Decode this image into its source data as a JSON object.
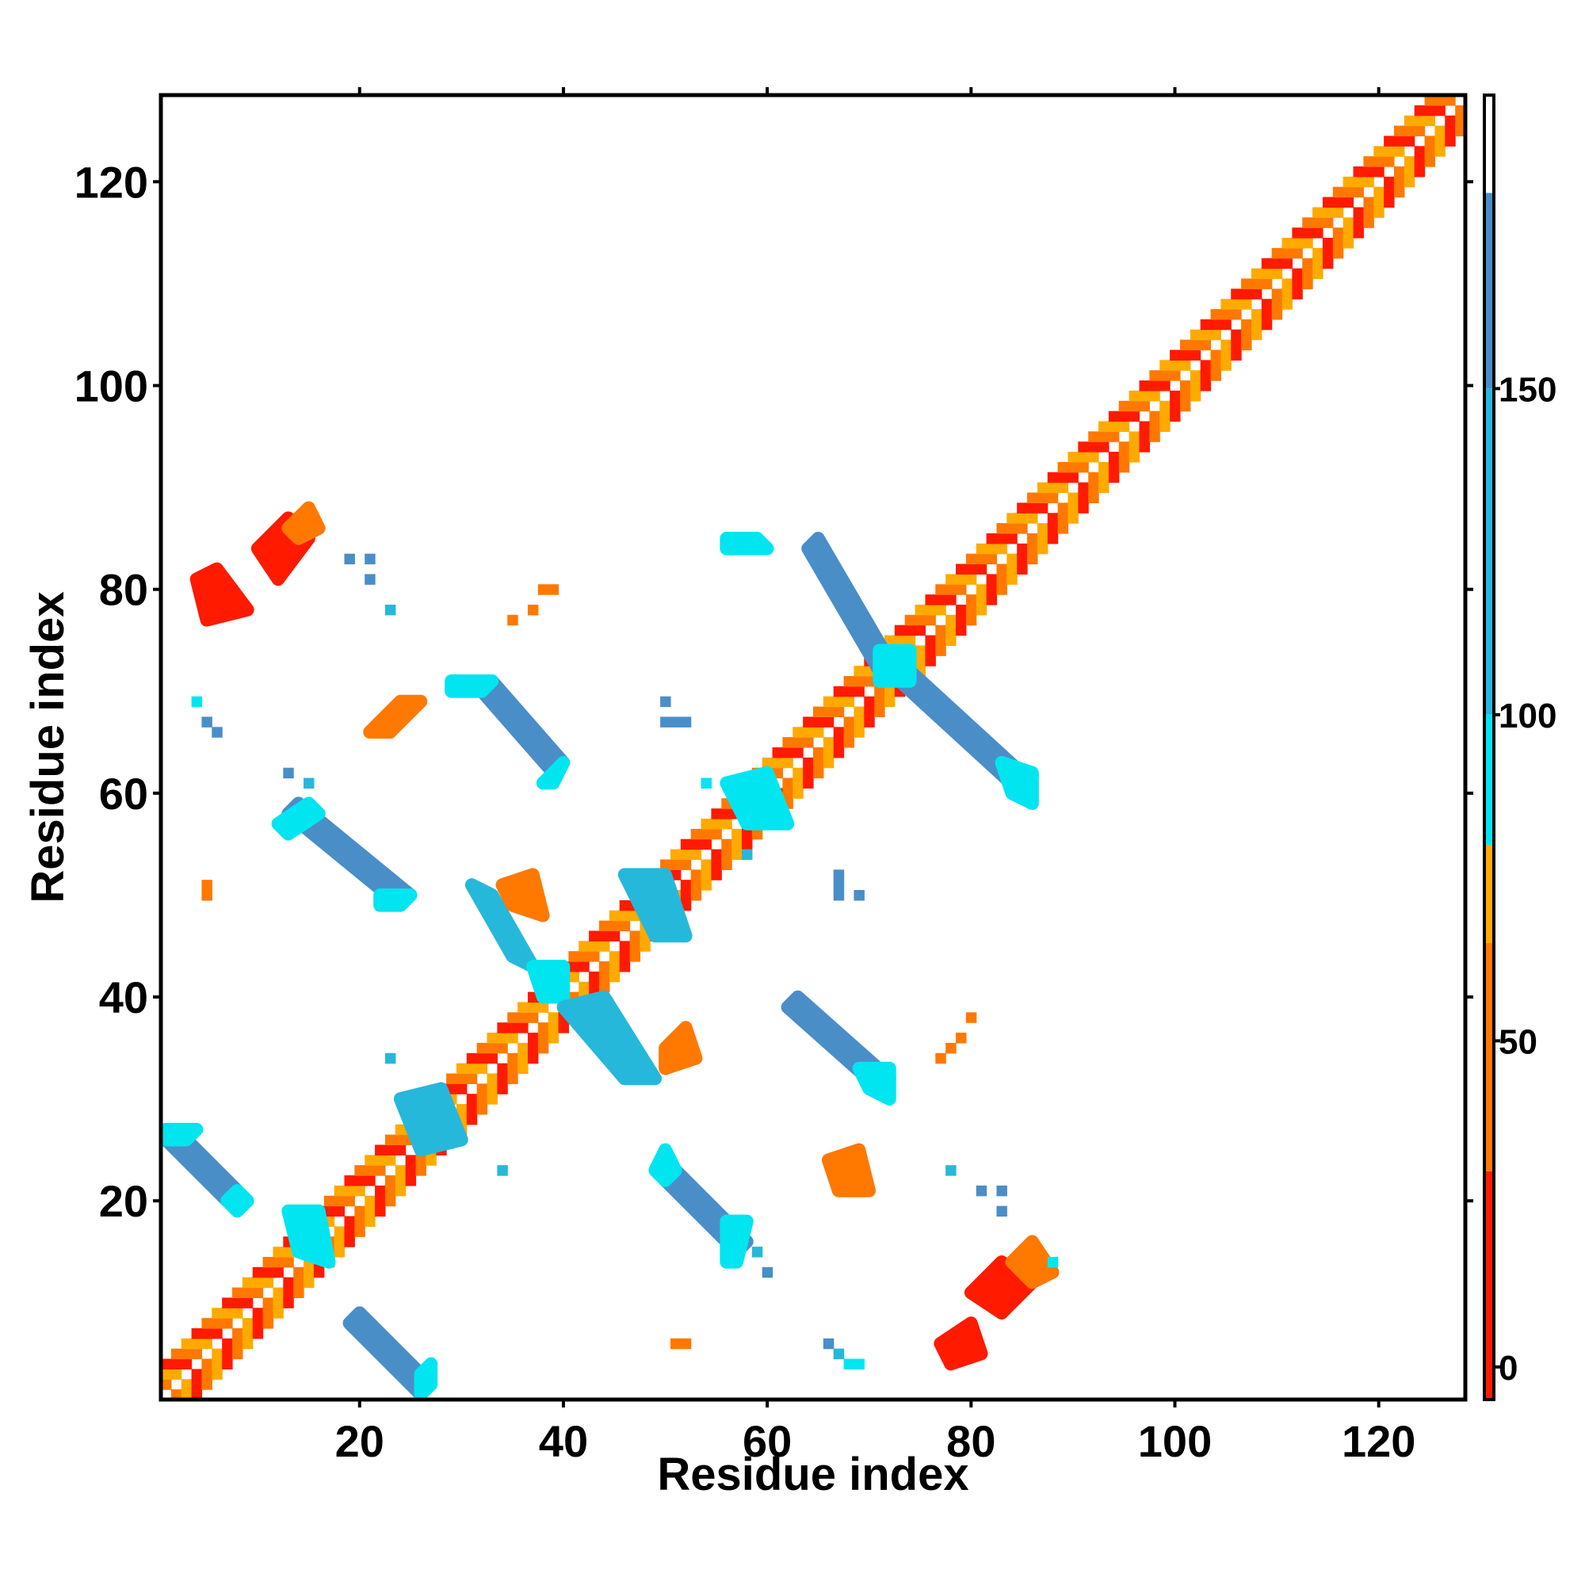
{
  "chart_data": {
    "type": "heatmap",
    "title": "",
    "xlabel": "Residue index",
    "ylabel": "Residue index",
    "xlim": [
      0.5,
      128.5
    ],
    "ylim": [
      0.5,
      128.5
    ],
    "xticks": [
      20,
      40,
      60,
      80,
      100,
      120
    ],
    "yticks": [
      20,
      40,
      60,
      80,
      100,
      120
    ],
    "grid": false,
    "colorbar": {
      "range": [
        -5,
        195
      ],
      "ticks": [
        0,
        50,
        100,
        150
      ],
      "bands": [
        {
          "from": -5,
          "to": 30,
          "color": "#ff1a00"
        },
        {
          "from": 30,
          "to": 65,
          "color": "#ff7800"
        },
        {
          "from": 65,
          "to": 80,
          "color": "#ffaa00"
        },
        {
          "from": 80,
          "to": 100,
          "color": "#00e5f0"
        },
        {
          "from": 100,
          "to": 150,
          "color": "#26b8da"
        },
        {
          "from": 150,
          "to": 180,
          "color": "#4a8ec8"
        },
        {
          "from": 180,
          "to": 195,
          "color": "#ffffff"
        }
      ]
    },
    "colors": {
      "red": "#ff1a00",
      "orange": "#ff7800",
      "amber": "#ffaa00",
      "cyan": "#00e5f0",
      "sky": "#26b8da",
      "steel": "#4a8ec8"
    },
    "value_by_color": {
      "red": 5,
      "orange": 45,
      "amber": 72,
      "cyan": 90,
      "sky": 125,
      "steel": 165
    },
    "diagonal": {
      "from": 1,
      "to": 128,
      "pattern": [
        "red",
        "orange",
        "amber"
      ],
      "offsets": [
        1,
        2,
        3
      ]
    },
    "regions": [
      {
        "color": "steel",
        "poly": [
          [
            1,
            26
          ],
          [
            2,
            27
          ],
          [
            8,
            21
          ],
          [
            7,
            20
          ]
        ]
      },
      {
        "color": "cyan",
        "poly": [
          [
            1,
            26
          ],
          [
            1,
            27
          ],
          [
            4,
            27
          ],
          [
            3,
            26
          ]
        ]
      },
      {
        "color": "cyan",
        "poly": [
          [
            7,
            20
          ],
          [
            8,
            21
          ],
          [
            9,
            20
          ],
          [
            8,
            19
          ]
        ]
      },
      {
        "color": "steel",
        "poly": [
          [
            19,
            8
          ],
          [
            20,
            9
          ],
          [
            27,
            2
          ],
          [
            26,
            1
          ]
        ]
      },
      {
        "color": "cyan",
        "poly": [
          [
            26,
            1
          ],
          [
            27,
            2
          ],
          [
            27,
            4
          ],
          [
            26,
            3
          ]
        ]
      },
      {
        "color": "steel",
        "poly": [
          [
            13,
            58
          ],
          [
            14,
            59
          ],
          [
            25,
            50
          ],
          [
            24,
            49
          ]
        ]
      },
      {
        "color": "cyan",
        "poly": [
          [
            12,
            57
          ],
          [
            15,
            59
          ],
          [
            16,
            58
          ],
          [
            13,
            56
          ]
        ]
      },
      {
        "color": "cyan",
        "poly": [
          [
            22,
            50
          ],
          [
            25,
            50
          ],
          [
            24,
            49
          ],
          [
            22,
            49
          ]
        ]
      },
      {
        "color": "steel",
        "poly": [
          [
            32,
            70
          ],
          [
            33,
            71
          ],
          [
            40,
            63
          ],
          [
            39,
            62
          ]
        ]
      },
      {
        "color": "cyan",
        "poly": [
          [
            29,
            71
          ],
          [
            33,
            71
          ],
          [
            32,
            70
          ],
          [
            29,
            70
          ]
        ]
      },
      {
        "color": "cyan",
        "poly": [
          [
            39,
            62
          ],
          [
            40,
            63
          ],
          [
            39,
            61
          ],
          [
            38,
            61
          ]
        ]
      },
      {
        "color": "steel",
        "poly": [
          [
            50,
            22
          ],
          [
            51,
            23
          ],
          [
            58,
            16
          ],
          [
            57,
            15
          ]
        ]
      },
      {
        "color": "cyan",
        "poly": [
          [
            49,
            23
          ],
          [
            50,
            25
          ],
          [
            51,
            23
          ],
          [
            50,
            22
          ]
        ]
      },
      {
        "color": "cyan",
        "poly": [
          [
            56,
            18
          ],
          [
            58,
            18
          ],
          [
            57,
            14
          ],
          [
            56,
            14
          ]
        ]
      },
      {
        "color": "steel",
        "poly": [
          [
            62,
            39
          ],
          [
            63,
            40
          ],
          [
            72,
            32
          ],
          [
            71,
            31
          ]
        ]
      },
      {
        "color": "cyan",
        "poly": [
          [
            69,
            33
          ],
          [
            72,
            33
          ],
          [
            72,
            30
          ],
          [
            70,
            31
          ]
        ]
      },
      {
        "color": "steel",
        "poly": [
          [
            64,
            84
          ],
          [
            65,
            85
          ],
          [
            72,
            73
          ],
          [
            71,
            72
          ]
        ]
      },
      {
        "color": "steel",
        "poly": [
          [
            73,
            71
          ],
          [
            74,
            72
          ],
          [
            86,
            61
          ],
          [
            85,
            60
          ]
        ]
      },
      {
        "color": "cyan",
        "poly": [
          [
            71,
            74
          ],
          [
            74,
            74
          ],
          [
            74,
            71
          ],
          [
            71,
            71
          ]
        ]
      },
      {
        "color": "cyan",
        "poly": [
          [
            56,
            85
          ],
          [
            59,
            85
          ],
          [
            60,
            84
          ],
          [
            56,
            84
          ]
        ]
      },
      {
        "color": "cyan",
        "poly": [
          [
            83,
            63
          ],
          [
            86,
            62
          ],
          [
            86,
            59
          ],
          [
            84,
            60
          ]
        ]
      },
      {
        "color": "sky",
        "poly": [
          [
            24,
            30
          ],
          [
            28,
            31
          ],
          [
            30,
            26
          ],
          [
            26,
            25
          ]
        ]
      },
      {
        "color": "cyan",
        "poly": [
          [
            13,
            19
          ],
          [
            16,
            19
          ],
          [
            17,
            14
          ],
          [
            14,
            15
          ]
        ]
      },
      {
        "color": "sky",
        "poly": [
          [
            31,
            51
          ],
          [
            33,
            50
          ],
          [
            37,
            43
          ],
          [
            35,
            44
          ]
        ]
      },
      {
        "color": "cyan",
        "poly": [
          [
            37,
            43
          ],
          [
            40,
            43
          ],
          [
            40,
            40
          ],
          [
            38,
            40
          ]
        ]
      },
      {
        "color": "sky",
        "poly": [
          [
            40,
            39
          ],
          [
            44,
            40
          ],
          [
            49,
            32
          ],
          [
            46,
            32
          ]
        ]
      },
      {
        "color": "sky",
        "poly": [
          [
            46,
            52
          ],
          [
            50,
            52
          ],
          [
            52,
            46
          ],
          [
            49,
            46
          ]
        ]
      },
      {
        "color": "cyan",
        "poly": [
          [
            56,
            61
          ],
          [
            60,
            62
          ],
          [
            62,
            57
          ],
          [
            58,
            57
          ]
        ]
      },
      {
        "color": "red",
        "poly": [
          [
            4,
            81
          ],
          [
            6,
            82
          ],
          [
            9,
            78
          ],
          [
            5,
            77
          ]
        ]
      },
      {
        "color": "red",
        "poly": [
          [
            10,
            84
          ],
          [
            13,
            87
          ],
          [
            15,
            85
          ],
          [
            12,
            81
          ]
        ]
      },
      {
        "color": "orange",
        "poly": [
          [
            13,
            86
          ],
          [
            15,
            88
          ],
          [
            16,
            86
          ],
          [
            14,
            85
          ]
        ]
      },
      {
        "color": "red",
        "poly": [
          [
            80,
            11
          ],
          [
            83,
            14
          ],
          [
            86,
            12
          ],
          [
            83,
            9
          ]
        ]
      },
      {
        "color": "orange",
        "poly": [
          [
            84,
            14
          ],
          [
            86,
            16
          ],
          [
            88,
            13
          ],
          [
            86,
            12
          ]
        ]
      },
      {
        "color": "red",
        "poly": [
          [
            77,
            6
          ],
          [
            80,
            8
          ],
          [
            81,
            5
          ],
          [
            78,
            4
          ]
        ]
      },
      {
        "color": "orange",
        "poly": [
          [
            66,
            24
          ],
          [
            69,
            25
          ],
          [
            70,
            21
          ],
          [
            67,
            21
          ]
        ]
      },
      {
        "color": "orange",
        "poly": [
          [
            21,
            66
          ],
          [
            24,
            69
          ],
          [
            26,
            69
          ],
          [
            23,
            66
          ]
        ]
      },
      {
        "color": "orange",
        "poly": [
          [
            34,
            51
          ],
          [
            37,
            52
          ],
          [
            38,
            48
          ],
          [
            35,
            49
          ]
        ]
      },
      {
        "color": "orange",
        "poly": [
          [
            50,
            35
          ],
          [
            52,
            37
          ],
          [
            53,
            34
          ],
          [
            50,
            33
          ]
        ]
      }
    ],
    "cells": [
      {
        "x": 4,
        "y": 69,
        "color": "cyan"
      },
      {
        "x": 5,
        "y": 67,
        "color": "steel"
      },
      {
        "x": 6,
        "y": 66,
        "color": "steel"
      },
      {
        "x": 5,
        "y": 51,
        "color": "orange"
      },
      {
        "x": 5,
        "y": 50,
        "color": "orange"
      },
      {
        "x": 19,
        "y": 83,
        "color": "steel"
      },
      {
        "x": 21,
        "y": 83,
        "color": "steel"
      },
      {
        "x": 21,
        "y": 81,
        "color": "steel"
      },
      {
        "x": 23,
        "y": 78,
        "color": "sky"
      },
      {
        "x": 13,
        "y": 62,
        "color": "steel"
      },
      {
        "x": 15,
        "y": 61,
        "color": "sky"
      },
      {
        "x": 23,
        "y": 34,
        "color": "sky"
      },
      {
        "x": 35,
        "y": 77,
        "color": "orange"
      },
      {
        "x": 37,
        "y": 78,
        "color": "orange"
      },
      {
        "x": 38,
        "y": 80,
        "color": "orange"
      },
      {
        "x": 39,
        "y": 80,
        "color": "orange"
      },
      {
        "x": 50,
        "y": 69,
        "color": "steel"
      },
      {
        "x": 50,
        "y": 67,
        "color": "steel"
      },
      {
        "x": 51,
        "y": 67,
        "color": "steel"
      },
      {
        "x": 52,
        "y": 67,
        "color": "steel"
      },
      {
        "x": 54,
        "y": 61,
        "color": "cyan"
      },
      {
        "x": 58,
        "y": 54,
        "color": "sky"
      },
      {
        "x": 67,
        "y": 52,
        "color": "steel"
      },
      {
        "x": 67,
        "y": 51,
        "color": "steel"
      },
      {
        "x": 67,
        "y": 50,
        "color": "steel"
      },
      {
        "x": 69,
        "y": 50,
        "color": "steel"
      },
      {
        "x": 34,
        "y": 23,
        "color": "sky"
      },
      {
        "x": 51,
        "y": 6,
        "color": "orange"
      },
      {
        "x": 52,
        "y": 6,
        "color": "orange"
      },
      {
        "x": 59,
        "y": 15,
        "color": "sky"
      },
      {
        "x": 60,
        "y": 13,
        "color": "steel"
      },
      {
        "x": 66,
        "y": 6,
        "color": "steel"
      },
      {
        "x": 67,
        "y": 5,
        "color": "sky"
      },
      {
        "x": 68,
        "y": 4,
        "color": "cyan"
      },
      {
        "x": 69,
        "y": 4,
        "color": "cyan"
      },
      {
        "x": 78,
        "y": 23,
        "color": "sky"
      },
      {
        "x": 81,
        "y": 21,
        "color": "steel"
      },
      {
        "x": 83,
        "y": 21,
        "color": "steel"
      },
      {
        "x": 83,
        "y": 19,
        "color": "steel"
      },
      {
        "x": 77,
        "y": 34,
        "color": "orange"
      },
      {
        "x": 78,
        "y": 35,
        "color": "orange"
      },
      {
        "x": 79,
        "y": 36,
        "color": "orange"
      },
      {
        "x": 80,
        "y": 38,
        "color": "orange"
      },
      {
        "x": 88,
        "y": 14,
        "color": "cyan"
      }
    ]
  }
}
